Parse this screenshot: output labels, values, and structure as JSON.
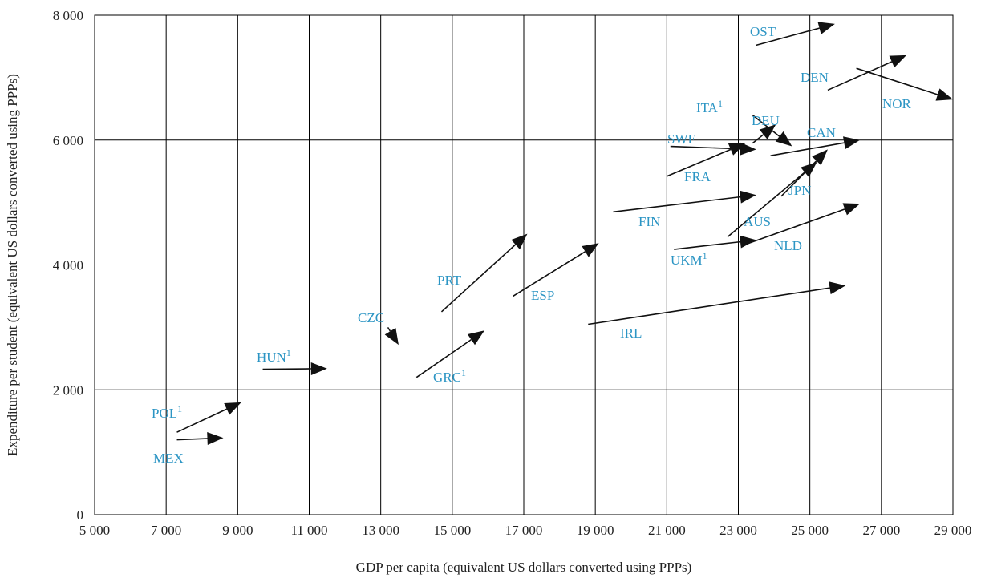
{
  "chart_data": {
    "type": "scatter",
    "subtype": "arrow",
    "title": "",
    "xlabel": "GDP per capita (equivalent US dollars converted using PPPs)",
    "ylabel": "Expenditure per student (equivalent US dollars converted using PPPs)",
    "xlim": [
      5000,
      29000
    ],
    "ylim": [
      0,
      8000
    ],
    "x_ticks": [
      5000,
      7000,
      9000,
      11000,
      13000,
      15000,
      17000,
      19000,
      21000,
      23000,
      25000,
      27000,
      29000
    ],
    "x_tick_labels": [
      "5 000",
      "7 000",
      "9 000",
      "11 000",
      "13 000",
      "15 000",
      "17 000",
      "19 000",
      "21 000",
      "23 000",
      "25 000",
      "27 000",
      "29 000"
    ],
    "y_ticks": [
      0,
      2000,
      4000,
      6000,
      8000
    ],
    "y_tick_labels": [
      "0",
      "2 000",
      "4 000",
      "6 000",
      "8 000"
    ],
    "grid": true,
    "arrow_color": "#111111",
    "label_color": "#2c95c4",
    "series": [
      {
        "label": "OST",
        "footnote": "",
        "x_start": 23500,
        "y_start": 7520,
        "x_end": 25700,
        "y_end": 7860
      },
      {
        "label": "DEN",
        "footnote": "",
        "x_start": 25500,
        "y_start": 6800,
        "x_end": 27700,
        "y_end": 7360
      },
      {
        "label": "NOR",
        "footnote": "",
        "x_start": 26300,
        "y_start": 7150,
        "x_end": 29000,
        "y_end": 6650
      },
      {
        "label": "ITA",
        "footnote": "1",
        "x_start": 23400,
        "y_start": 6400,
        "x_end": 24500,
        "y_end": 5900
      },
      {
        "label": "DEU",
        "footnote": "",
        "x_start": 23400,
        "y_start": 5950,
        "x_end": 24050,
        "y_end": 6250
      },
      {
        "label": "CAN",
        "footnote": "",
        "x_start": 23900,
        "y_start": 5750,
        "x_end": 26400,
        "y_end": 6000
      },
      {
        "label": "SWE",
        "footnote": "",
        "x_start": 21100,
        "y_start": 5900,
        "x_end": 23500,
        "y_end": 5850
      },
      {
        "label": "FRA",
        "footnote": "",
        "x_start": 21000,
        "y_start": 5420,
        "x_end": 23200,
        "y_end": 5950
      },
      {
        "label": "JPN",
        "footnote": "",
        "x_start": 24200,
        "y_start": 5100,
        "x_end": 25500,
        "y_end": 5850
      },
      {
        "label": "AUS",
        "footnote": "",
        "x_start": 22700,
        "y_start": 4450,
        "x_end": 25200,
        "y_end": 5650
      },
      {
        "label": "FIN",
        "footnote": "",
        "x_start": 19500,
        "y_start": 4850,
        "x_end": 23500,
        "y_end": 5120
      },
      {
        "label": "UKM",
        "footnote": "1",
        "x_start": 21200,
        "y_start": 4250,
        "x_end": 23500,
        "y_end": 4400
      },
      {
        "label": "NLD",
        "footnote": "",
        "x_start": 23300,
        "y_start": 4350,
        "x_end": 26400,
        "y_end": 4980
      },
      {
        "label": "PRT",
        "footnote": "",
        "x_start": 14700,
        "y_start": 3250,
        "x_end": 17100,
        "y_end": 4500
      },
      {
        "label": "ESP",
        "footnote": "",
        "x_start": 16700,
        "y_start": 3500,
        "x_end": 19100,
        "y_end": 4350
      },
      {
        "label": "IRL",
        "footnote": "",
        "x_start": 18800,
        "y_start": 3050,
        "x_end": 26000,
        "y_end": 3670
      },
      {
        "label": "CZC",
        "footnote": "",
        "x_start": 13200,
        "y_start": 3000,
        "x_end": 13500,
        "y_end": 2720
      },
      {
        "label": "GRC",
        "footnote": "1",
        "x_start": 14000,
        "y_start": 2200,
        "x_end": 15900,
        "y_end": 2950
      },
      {
        "label": "HUN",
        "footnote": "1",
        "x_start": 9700,
        "y_start": 2330,
        "x_end": 11500,
        "y_end": 2340
      },
      {
        "label": "POL",
        "footnote": "1",
        "x_start": 7300,
        "y_start": 1320,
        "x_end": 9100,
        "y_end": 1800
      },
      {
        "label": "MEX",
        "footnote": "",
        "x_start": 7300,
        "y_start": 1200,
        "x_end": 8600,
        "y_end": 1230
      }
    ]
  }
}
